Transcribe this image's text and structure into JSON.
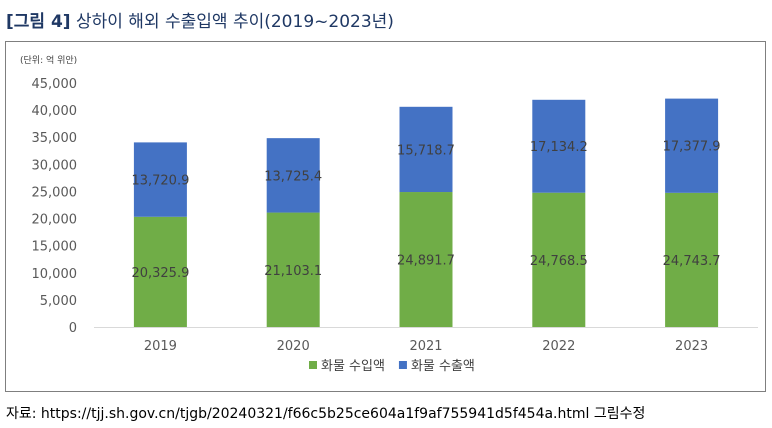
{
  "figure": {
    "label": "[그림 4]",
    "title": "상하이 해외 수출입액 추이(2019~2023년)"
  },
  "source": "자료: https://tjj.sh.gov.cn/tjgb/20240321/f66c5b25ce604a1f9af755941d5f454a.html  그림수정",
  "colors": {
    "import": "#70ad47",
    "export": "#4472c4",
    "title": "#1f3864"
  },
  "chart_data": {
    "type": "bar",
    "stacked": true,
    "unit_note": "(단위: 억 위안)",
    "categories": [
      "2019",
      "2020",
      "2021",
      "2022",
      "2023"
    ],
    "series": [
      {
        "name": "화물 수입액",
        "values": [
          20325.9,
          21103.1,
          24891.7,
          24768.5,
          24743.7
        ],
        "labels": [
          "20,325.9",
          "21,103.1",
          "24,891.7",
          "24,768.5",
          "24,743.7"
        ]
      },
      {
        "name": "화물 수출액",
        "values": [
          13720.9,
          13725.4,
          15718.7,
          17134.2,
          17377.9
        ],
        "labels": [
          "13,720.9",
          "13,725.4",
          "15,718.7",
          "17,134.2",
          "17,377.9"
        ]
      }
    ],
    "ylim": [
      0,
      45000
    ],
    "yticks": [
      0,
      5000,
      10000,
      15000,
      20000,
      25000,
      30000,
      35000,
      40000,
      45000
    ],
    "ytick_labels": [
      "0",
      "5,000",
      "10,000",
      "15,000",
      "20,000",
      "25,000",
      "30,000",
      "35,000",
      "40,000",
      "45,000"
    ],
    "grid": false,
    "legend": "bottom"
  }
}
